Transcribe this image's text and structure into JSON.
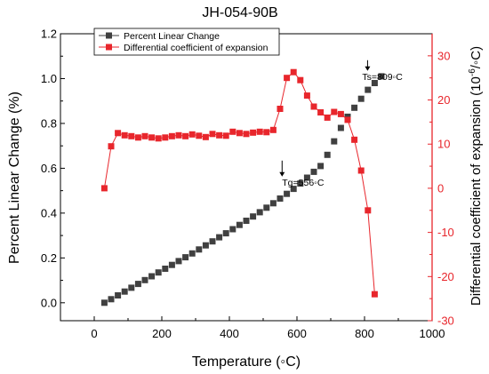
{
  "chart_data": {
    "type": "scatter",
    "title": "JH-054-90B",
    "xlabel": "Temperature (◦C)",
    "ylabel_left": "Percent Linear Change (%)",
    "ylabel_right_prefix": "Differential coefficient of expansion (10",
    "ylabel_right_sup": "-6",
    "ylabel_right_suffix": "/◦C)",
    "xlim": [
      -100,
      1000
    ],
    "ylim_left": [
      -0.08,
      1.2
    ],
    "ylim_right": [
      -30,
      35
    ],
    "x_ticks": [
      0,
      200,
      400,
      600,
      800,
      1000
    ],
    "y_left_ticks": [
      0.0,
      0.2,
      0.4,
      0.6,
      0.8,
      1.0,
      1.2
    ],
    "y_left_tick_labels": [
      "0.0",
      "0.2",
      "0.4",
      "0.6",
      "0.8",
      "1.0",
      "1.2"
    ],
    "y_right_ticks": [
      -30,
      -20,
      -10,
      0,
      10,
      20,
      30
    ],
    "grid": false,
    "legend_position": "top-left",
    "series": [
      {
        "name": "Percent Linear Change",
        "axis": "left",
        "color": "#404040",
        "marker": "square",
        "line": false,
        "x": [
          30,
          50,
          70,
          90,
          110,
          130,
          150,
          170,
          190,
          210,
          230,
          250,
          270,
          290,
          310,
          330,
          350,
          370,
          390,
          410,
          430,
          450,
          470,
          490,
          510,
          530,
          550,
          570,
          590,
          610,
          630,
          650,
          670,
          690,
          710,
          730,
          750,
          770,
          790,
          810,
          830,
          850
        ],
        "y": [
          0.0,
          0.016,
          0.033,
          0.05,
          0.067,
          0.084,
          0.101,
          0.118,
          0.135,
          0.152,
          0.169,
          0.186,
          0.203,
          0.22,
          0.238,
          0.256,
          0.274,
          0.292,
          0.31,
          0.328,
          0.347,
          0.366,
          0.385,
          0.404,
          0.424,
          0.444,
          0.465,
          0.486,
          0.508,
          0.532,
          0.558,
          0.584,
          0.61,
          0.66,
          0.72,
          0.78,
          0.83,
          0.87,
          0.91,
          0.95,
          0.98,
          1.01
        ]
      },
      {
        "name": "Differential coefficient of expansion",
        "axis": "right",
        "color": "#e8262c",
        "marker": "square",
        "line": true,
        "x": [
          30,
          50,
          70,
          90,
          110,
          130,
          150,
          170,
          190,
          210,
          230,
          250,
          270,
          290,
          310,
          330,
          350,
          370,
          390,
          410,
          430,
          450,
          470,
          490,
          510,
          530,
          550,
          570,
          590,
          610,
          630,
          650,
          670,
          690,
          710,
          730,
          750,
          770,
          790,
          810,
          830
        ],
        "y": [
          0,
          9.5,
          12.5,
          12,
          11.8,
          11.5,
          11.8,
          11.5,
          11.3,
          11.5,
          11.8,
          12,
          11.8,
          12.2,
          11.9,
          11.6,
          12.3,
          12,
          11.9,
          12.8,
          12.5,
          12.3,
          12.6,
          12.8,
          12.7,
          13.2,
          18,
          25,
          26.3,
          24.5,
          21,
          18.5,
          17.2,
          16,
          17.3,
          16.8,
          15.5,
          11,
          4,
          -5,
          -24
        ]
      }
    ],
    "annotations": [
      {
        "text": "Ts=809◦C",
        "x": 809,
        "y": 1.09,
        "axis": "left"
      },
      {
        "text": "Tg=556◦C",
        "x": 556,
        "y": 0.65,
        "axis": "left"
      }
    ]
  }
}
